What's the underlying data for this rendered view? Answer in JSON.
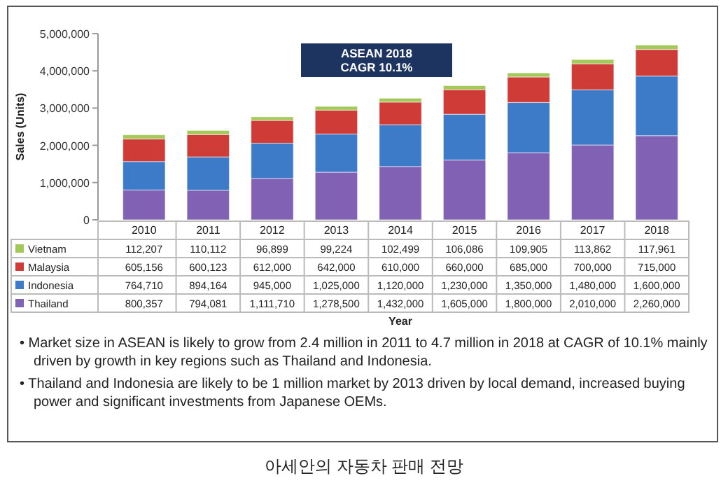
{
  "chart_data": {
    "type": "bar",
    "stacked": true,
    "ylabel": "Sales (Units)",
    "categories": [
      "2010",
      "2011",
      "2012",
      "2013",
      "2014",
      "2015",
      "2016",
      "2017",
      "2018"
    ],
    "series": [
      {
        "name": "Thailand",
        "color": "#8061b4",
        "values": [
          800357,
          794081,
          1111710,
          1278500,
          1432000,
          1605000,
          1800000,
          2010000,
          2260000
        ],
        "value_labels": [
          "800,357",
          "794,081",
          "1,111,710",
          "1,278,500",
          "1,432,000",
          "1,605,000",
          "1,800,000",
          "2,010,000",
          "2,260,000"
        ]
      },
      {
        "name": "Indonesia",
        "color": "#3d7ac8",
        "values": [
          764710,
          894164,
          945000,
          1025000,
          1120000,
          1230000,
          1350000,
          1480000,
          1600000
        ],
        "value_labels": [
          "764,710",
          "894,164",
          "945,000",
          "1,025,000",
          "1,120,000",
          "1,230,000",
          "1,350,000",
          "1,480,000",
          "1,600,000"
        ]
      },
      {
        "name": "Malaysia",
        "color": "#cf3b36",
        "values": [
          605156,
          600123,
          612000,
          642000,
          610000,
          660000,
          685000,
          700000,
          715000
        ],
        "value_labels": [
          "605,156",
          "600,123",
          "612,000",
          "642,000",
          "610,000",
          "660,000",
          "685,000",
          "700,000",
          "715,000"
        ]
      },
      {
        "name": "Vietnam",
        "color": "#a3c95a",
        "values": [
          112207,
          110112,
          96899,
          99224,
          102499,
          106086,
          109905,
          113862,
          117961
        ],
        "value_labels": [
          "112,207",
          "110,112",
          "96,899",
          "99,224",
          "102,499",
          "106,086",
          "109,905",
          "113,862",
          "117,961"
        ]
      }
    ],
    "ylim": [
      0,
      5000000
    ],
    "yticks": [
      {
        "value": 0,
        "label": "0"
      },
      {
        "value": 1000000,
        "label": "1,000,000"
      },
      {
        "value": 2000000,
        "label": "2,000,000"
      },
      {
        "value": 3000000,
        "label": "3,000,000"
      },
      {
        "value": 4000000,
        "label": "4,000,000"
      },
      {
        "value": 5000000,
        "label": "5,000,000"
      }
    ],
    "legend": "bottom",
    "annotations": [
      "ASEAN 2018\nCAGR 10.1%",
      "Year",
      "• Market size in ASEAN is likely to grow from 2.4 million in 2011 to 4.7 million in 2018 at CAGR of 10.1% mainly driven by growth in key regions such as Thailand and Indonesia.",
      "• Thailand and Indonesia are likely to be 1 million market by 2013 driven by local demand, increased buying power and significant investments from Japanese OEMs.",
      "아세안의 자동차 판매 전망"
    ]
  }
}
